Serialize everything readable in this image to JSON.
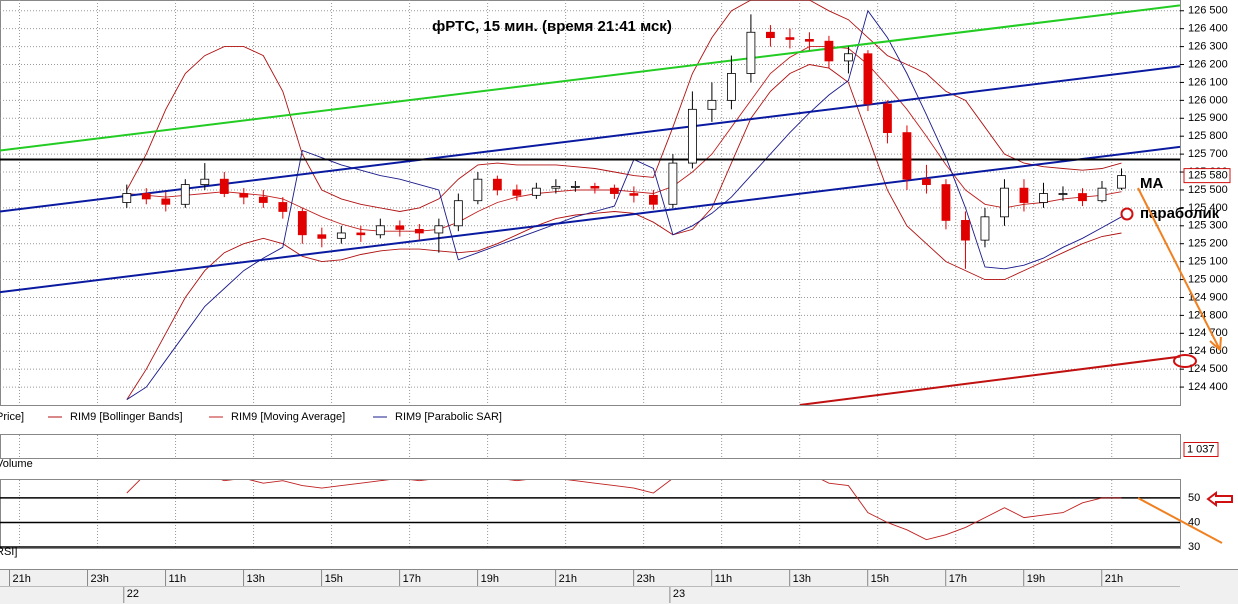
{
  "chart_data": [
    {
      "type": "candlestick",
      "title": "фРТС, 15 мин.  (время 21:41 мск)",
      "legend_label": "Price]",
      "x": [
        6.5,
        7.5,
        8.5,
        9.5,
        10.5,
        11.5,
        12.5,
        13.5,
        14.5,
        15.5,
        16.5,
        17.5,
        18.5,
        19.5,
        20.5,
        21.5,
        22.5,
        23.5,
        24.5,
        25.5,
        26.5,
        27.5,
        28.5,
        29.5,
        30.5,
        31.5,
        32.5,
        33.5,
        34.5,
        35.5,
        36.5,
        37.5,
        38.5,
        39.5,
        40.5,
        41.5,
        42.5,
        43.5,
        44.5,
        45.5,
        46.5,
        47.5,
        48.5,
        49.5,
        50.5,
        51.5,
        52.5,
        53.5,
        54.5,
        55.5,
        56.5,
        57.5
      ],
      "open": [
        125430,
        125480,
        125450,
        125420,
        125530,
        125560,
        125480,
        125460,
        125430,
        125380,
        125250,
        125230,
        125260,
        125250,
        125300,
        125280,
        125260,
        125300,
        125440,
        125560,
        125500,
        125470,
        125510,
        125520,
        125520,
        125510,
        125480,
        125470,
        125420,
        125650,
        125950,
        126000,
        126150,
        126380,
        126350,
        126340,
        126330,
        126220,
        126260,
        125980,
        125820,
        125560,
        125530,
        125330,
        125220,
        125350,
        125510,
        125430,
        125480,
        125480,
        125440,
        125510
      ],
      "high": [
        125530,
        125510,
        125490,
        125560,
        125650,
        125600,
        125510,
        125500,
        125460,
        125400,
        125290,
        125300,
        125300,
        125340,
        125330,
        125310,
        125340,
        125480,
        125600,
        125580,
        125530,
        125540,
        125560,
        125550,
        125540,
        125530,
        125520,
        125500,
        125700,
        126050,
        126100,
        126250,
        126480,
        126420,
        126400,
        126380,
        126360,
        126300,
        126280,
        126000,
        125860,
        125640,
        125560,
        125380,
        125400,
        125560,
        125560,
        125540,
        125520,
        125510,
        125550,
        125620
      ],
      "low": [
        125400,
        125420,
        125380,
        125400,
        125500,
        125460,
        125420,
        125400,
        125340,
        125200,
        125180,
        125200,
        125210,
        125230,
        125240,
        125220,
        125150,
        125270,
        125420,
        125470,
        125440,
        125450,
        125480,
        125490,
        125480,
        125450,
        125430,
        125390,
        125400,
        125620,
        125880,
        125950,
        126100,
        126300,
        126290,
        126280,
        126180,
        126150,
        125940,
        125760,
        125500,
        125480,
        125280,
        125060,
        125180,
        125300,
        125380,
        125400,
        125440,
        125410,
        125430,
        125500
      ],
      "close": [
        125480,
        125450,
        125420,
        125530,
        125560,
        125480,
        125460,
        125430,
        125380,
        125250,
        125230,
        125260,
        125250,
        125300,
        125280,
        125260,
        125300,
        125440,
        125560,
        125500,
        125470,
        125510,
        125520,
        125520,
        125510,
        125480,
        125470,
        125420,
        125650,
        125950,
        126000,
        126150,
        126380,
        126350,
        126340,
        126330,
        126220,
        126260,
        125980,
        125820,
        125560,
        125530,
        125330,
        125220,
        125350,
        125510,
        125430,
        125480,
        125480,
        125440,
        125510,
        125580
      ],
      "up_color": "#ffffff",
      "down_color": "#e00000",
      "bands": {
        "name": "RIM9 [Bollinger Bands]",
        "color": "#b01010",
        "upper": [
          125500,
          125700,
          125950,
          126150,
          126250,
          126300,
          126300,
          126250,
          126050,
          125700,
          125500,
          125450,
          125420,
          125400,
          125380,
          125400,
          125450,
          125560,
          125640,
          125650,
          125640,
          125640,
          125640,
          125630,
          125620,
          125600,
          125580,
          125570,
          125850,
          126150,
          126350,
          126500,
          126560,
          126560,
          126560,
          126560,
          126500,
          126450,
          126350,
          126250,
          126200,
          126150,
          126050,
          126000,
          125850,
          125700,
          125650,
          125630,
          125620,
          125610,
          125620,
          125650
        ],
        "lower": [
          124330,
          124500,
          124700,
          124900,
          125050,
          125150,
          125200,
          125230,
          125200,
          125130,
          125100,
          125110,
          125140,
          125160,
          125170,
          125170,
          125160,
          125150,
          125160,
          125200,
          125250,
          125300,
          125340,
          125360,
          125370,
          125380,
          125370,
          125320,
          125250,
          125280,
          125400,
          125650,
          125900,
          126050,
          126150,
          126200,
          126180,
          126100,
          125800,
          125500,
          125300,
          125200,
          125100,
          125050,
          125000,
          125000,
          125050,
          125100,
          125150,
          125200,
          125240,
          125260
        ]
      },
      "series": [
        {
          "name": "RIM9 [Moving Average]",
          "color": "#c02020",
          "values": [
            125480,
            125470,
            125460,
            125470,
            125480,
            125490,
            125480,
            125470,
            125450,
            125400,
            125350,
            125310,
            125280,
            125270,
            125270,
            125270,
            125280,
            125320,
            125380,
            125430,
            125460,
            125480,
            125490,
            125500,
            125500,
            125500,
            125490,
            125480,
            125520,
            125600,
            125700,
            125850,
            126000,
            126150,
            126240,
            126300,
            126300,
            126290,
            126200,
            126080,
            125950,
            125800,
            125640,
            125500,
            125420,
            125400,
            125420,
            125430,
            125450,
            125460,
            125470,
            125490
          ]
        },
        {
          "name": "RIM9 [Parabolic SAR]",
          "color": "#1a1a8c",
          "values": [
            124330,
            124400,
            124550,
            124700,
            124850,
            124950,
            125050,
            125120,
            125180,
            125720,
            125680,
            125640,
            125610,
            125580,
            125560,
            125530,
            125500,
            125110,
            125150,
            125190,
            125230,
            125270,
            125310,
            125350,
            125380,
            125410,
            125670,
            125620,
            125250,
            125300,
            125370,
            125460,
            125580,
            125700,
            125820,
            125930,
            126030,
            126110,
            126500,
            126350,
            126150,
            125920,
            125680,
            125400,
            125070,
            125060,
            125080,
            125120,
            125180,
            125230,
            125290,
            125350
          ]
        }
      ],
      "trend_lines": [
        {
          "color": "#22cc22",
          "x": [
            0,
            60.5
          ],
          "y": [
            125720,
            126530
          ]
        },
        {
          "color": "#0a1aa0",
          "x": [
            0,
            60.5
          ],
          "y": [
            125380,
            126190
          ]
        },
        {
          "color": "#0a1aa0",
          "x": [
            0,
            60.5
          ],
          "y": [
            124930,
            125740
          ]
        },
        {
          "color": "#000000",
          "x": [
            0,
            60.5
          ],
          "y": [
            125670,
            125670
          ]
        },
        {
          "color": "#c01010",
          "x": [
            41,
            60.5
          ],
          "y": [
            124300,
            124570
          ]
        }
      ],
      "annotations": [
        "MA",
        "параболик"
      ],
      "last_value": {
        "value": 125580,
        "label": "125 580"
      },
      "xlim": [
        0,
        60.5
      ],
      "ylim": [
        124300,
        126560
      ],
      "yticks": [
        {
          "value": 124400,
          "label": "124 400"
        },
        {
          "value": 124500,
          "label": "124 500"
        },
        {
          "value": 124600,
          "label": "124 600"
        },
        {
          "value": 124700,
          "label": "124 700"
        },
        {
          "value": 124800,
          "label": "124 800"
        },
        {
          "value": 124900,
          "label": "124 900"
        },
        {
          "value": 125000,
          "label": "125 000"
        },
        {
          "value": 125100,
          "label": "125 100"
        },
        {
          "value": 125200,
          "label": "125 200"
        },
        {
          "value": 125300,
          "label": "125 300"
        },
        {
          "value": 125400,
          "label": "125 400"
        },
        {
          "value": 125500,
          "label": "125 500"
        },
        {
          "value": 125600,
          "label": "125 600"
        },
        {
          "value": 125700,
          "label": "125 700"
        },
        {
          "value": 125800,
          "label": "125 800"
        },
        {
          "value": 125900,
          "label": "125 900"
        },
        {
          "value": 126000,
          "label": "126 000"
        },
        {
          "value": 126100,
          "label": "126 100"
        },
        {
          "value": 126200,
          "label": "126 200"
        },
        {
          "value": 126300,
          "label": "126 300"
        },
        {
          "value": 126400,
          "label": "126 400"
        },
        {
          "value": 126500,
          "label": "126 500"
        }
      ],
      "xticks": [
        {
          "value": 1,
          "label": "21h"
        },
        {
          "value": 5,
          "label": "23h"
        },
        {
          "value": 9,
          "label": "11h"
        },
        {
          "value": 13,
          "label": "13h"
        },
        {
          "value": 17,
          "label": "15h"
        },
        {
          "value": 21,
          "label": "17h"
        },
        {
          "value": 25,
          "label": "19h"
        },
        {
          "value": 29,
          "label": "21h"
        },
        {
          "value": 33,
          "label": "23h"
        },
        {
          "value": 37,
          "label": "11h"
        },
        {
          "value": 41,
          "label": "13h"
        },
        {
          "value": 45,
          "label": "15h"
        },
        {
          "value": 49,
          "label": "17h"
        },
        {
          "value": 53,
          "label": "19h"
        },
        {
          "value": 57,
          "label": "21h"
        }
      ],
      "date_ticks": [
        {
          "value": 6.5,
          "label": "22"
        },
        {
          "value": 34.5,
          "label": "23"
        }
      ],
      "grid": true
    },
    {
      "type": "volume",
      "legend_label": "Volume",
      "last_value": {
        "value": 1037,
        "label": "1 037"
      }
    },
    {
      "type": "line",
      "legend_label": "RSI]",
      "series": [
        {
          "color": "#c02020",
          "values": [
            52,
            60,
            62,
            58,
            60,
            57,
            58,
            56,
            57,
            55,
            54,
            55,
            56,
            57,
            58,
            57,
            58,
            60,
            60,
            58,
            57,
            58,
            58,
            57,
            56,
            55,
            54,
            52,
            58,
            60,
            62,
            64,
            63,
            62,
            61,
            60,
            56,
            55,
            44,
            40,
            37,
            33,
            35,
            38,
            42,
            46,
            42,
            43,
            44,
            48,
            50,
            50
          ]
        }
      ],
      "ylim": [
        29.6,
        57.3
      ],
      "yticks": [
        50,
        40,
        30
      ],
      "tick_lines": true
    }
  ]
}
